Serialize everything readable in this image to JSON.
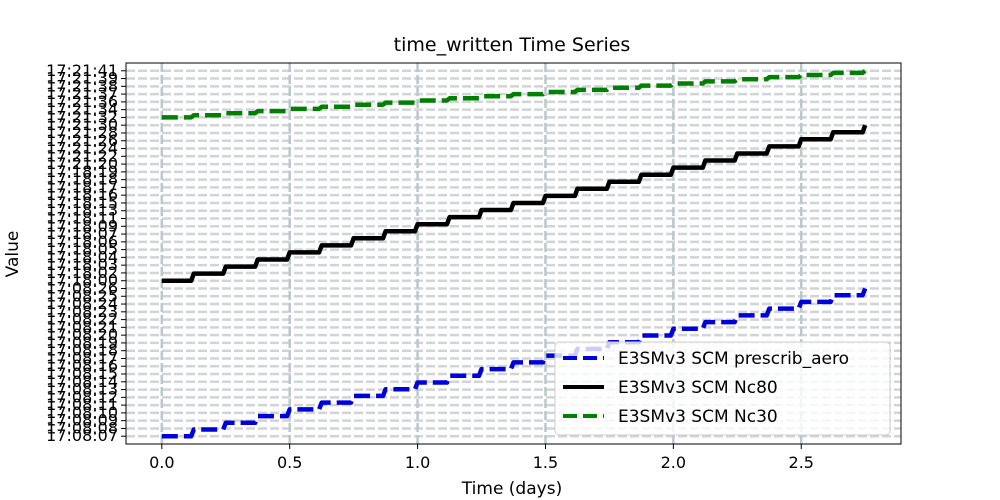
{
  "chart_data": {
    "type": "line",
    "title": "time_written Time Series",
    "xlabel": "Time (days)",
    "ylabel": "Value",
    "xlim": [
      -0.14,
      2.89
    ],
    "xticks": [
      0.0,
      0.5,
      1.0,
      1.5,
      2.0,
      2.5
    ],
    "xtick_labels": [
      "0.0",
      "0.5",
      "1.0",
      "1.5",
      "2.0",
      "2.5"
    ],
    "ylim": [
      -1,
      48
    ],
    "yticks": [
      0,
      1,
      2,
      3,
      4,
      5,
      6,
      7,
      8,
      9,
      10,
      11,
      12,
      13,
      14,
      15,
      16,
      17,
      18,
      19,
      20,
      21,
      22,
      23,
      24,
      25,
      26,
      27,
      28,
      29,
      30,
      31,
      32,
      33,
      34,
      35,
      36,
      37,
      38,
      39,
      40,
      41,
      42,
      43,
      44,
      45,
      46,
      47
    ],
    "ytick_labels": [
      "17:08:07",
      "17:08:08",
      "17:08:09",
      "17:08:10",
      "17:08:11",
      "17:08:12",
      "17:08:13",
      "17:08:14",
      "17:08:15",
      "17:08:16",
      "17:08:17",
      "17:08:18",
      "17:08:19",
      "17:08:20",
      "17:08:21",
      "17:08:22",
      "17:08:23",
      "17:08:24",
      "17:08:25",
      "17:08:26",
      "17:18:00",
      "17:18:02",
      "17:18:03",
      "17:18:04",
      "17:18:05",
      "17:18:06",
      "17:18:07",
      "17:18:09",
      "17:18:11",
      "17:18:13",
      "17:18:15",
      "17:18:16",
      "17:18:17",
      "17:18:18",
      "17:18:19",
      "17:21:20",
      "17:21:22",
      "17:21:24",
      "17:21:26",
      "17:21:28",
      "17:21:30",
      "17:21:32",
      "17:21:34",
      "17:21:36",
      "17:21:37",
      "17:21:38",
      "17:21:39",
      "17:21:41"
    ],
    "grid": true,
    "legend_position": "lower-right",
    "series": [
      {
        "name": "E3SMv3 SCM prescrib_aero",
        "color": "#0000dd",
        "dash": "dashed",
        "y_start": 0,
        "y_end": 19,
        "steps": 22,
        "x_start": 0.0,
        "x_end": 2.75
      },
      {
        "name": "E3SMv3 SCM Nc80",
        "color": "#000000",
        "dash": "solid",
        "y_start": 20,
        "y_end": 40,
        "steps": 22,
        "x_start": 0.0,
        "x_end": 2.75
      },
      {
        "name": "E3SMv3 SCM Nc30",
        "color": "#008000",
        "dash": "dashed",
        "y_start": 41,
        "y_end": 47,
        "steps": 22,
        "x_start": 0.0,
        "x_end": 2.75
      }
    ]
  },
  "legend": {
    "items": [
      "E3SMv3 SCM prescrib_aero",
      "E3SMv3 SCM Nc80",
      "E3SMv3 SCM Nc30"
    ]
  }
}
